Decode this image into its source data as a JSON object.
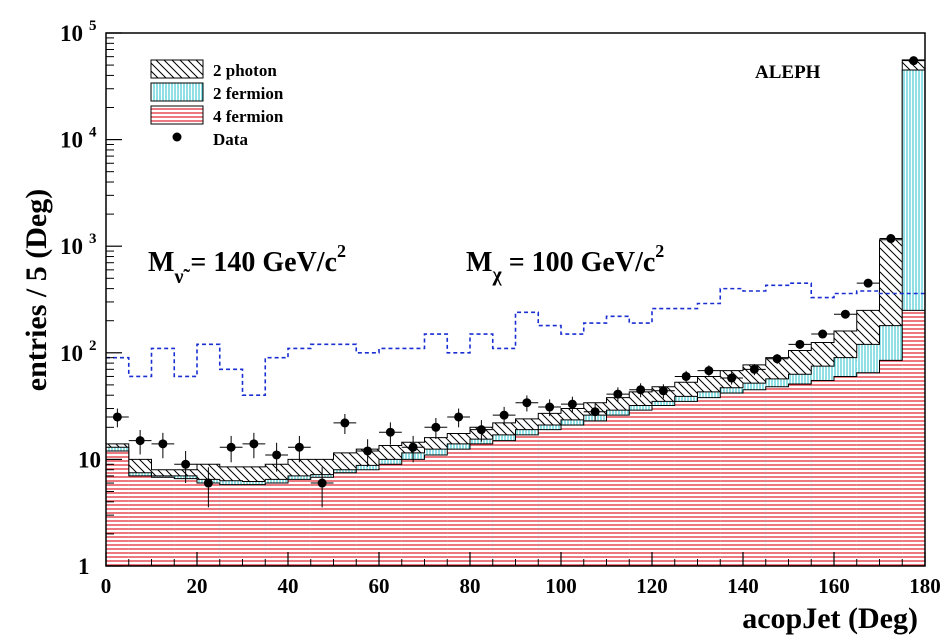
{
  "chart_data": {
    "type": "histogram",
    "xlabel": "acopJet (Deg)",
    "ylabel": "entries / 5 (Deg)",
    "xlim": [
      0,
      180
    ],
    "ylim": [
      1,
      100000
    ],
    "log_y": true,
    "grid": false,
    "legend_position": "top-left",
    "experiment_label": "ALEPH",
    "annotations": [
      {
        "text": "M",
        "sub": "ν̃",
        "rest": " = 140 GeV/c",
        "sup": "2"
      },
      {
        "text": "M",
        "sub": "χ",
        "rest": " = 100 GeV/c",
        "sup": "2"
      }
    ],
    "x_ticks": [
      0,
      20,
      40,
      60,
      80,
      100,
      120,
      140,
      160,
      180
    ],
    "y_ticks": [
      {
        "value": 1,
        "base": "1",
        "exp": ""
      },
      {
        "value": 10,
        "base": "10",
        "exp": ""
      },
      {
        "value": 100,
        "base": "10",
        "exp": "2"
      },
      {
        "value": 1000,
        "base": "10",
        "exp": "3"
      },
      {
        "value": 10000,
        "base": "10",
        "exp": "4"
      },
      {
        "value": 100000,
        "base": "10",
        "exp": "5"
      }
    ],
    "bin_edges": [
      0,
      5,
      10,
      15,
      20,
      25,
      30,
      35,
      40,
      45,
      50,
      55,
      60,
      65,
      70,
      75,
      80,
      85,
      90,
      95,
      100,
      105,
      110,
      115,
      120,
      125,
      130,
      135,
      140,
      145,
      150,
      155,
      160,
      165,
      170,
      175,
      180
    ],
    "series": [
      {
        "name": "4 fermion",
        "style": "red-hatch",
        "values": [
          12,
          7,
          6.8,
          6.6,
          6,
          5.8,
          5.8,
          6,
          6.5,
          6.8,
          7.5,
          8,
          9,
          10,
          11,
          12.5,
          14,
          15,
          17,
          19,
          21,
          23,
          26,
          29,
          32,
          35,
          38,
          42,
          45,
          48,
          51,
          55,
          60,
          65,
          85,
          250
        ]
      },
      {
        "name": "2 fermion",
        "style": "cyan-stripe",
        "values": [
          13,
          7.5,
          7,
          7,
          6.5,
          6.3,
          6.2,
          6.5,
          7,
          7.2,
          8,
          8.8,
          10,
          11.5,
          12.5,
          14,
          15.5,
          17,
          19,
          21,
          23.5,
          26,
          29,
          32,
          35,
          39,
          43,
          47,
          52,
          57,
          63,
          75,
          90,
          120,
          180,
          45000
        ]
      },
      {
        "name": "2 photon",
        "style": "black-diagonal",
        "values": [
          14,
          10,
          8,
          8,
          9,
          8.5,
          8.5,
          9,
          10,
          10,
          11.5,
          12.5,
          13.5,
          14.5,
          16,
          17.5,
          20,
          22,
          24,
          27,
          30,
          34,
          38,
          43,
          48,
          53,
          60,
          68,
          77,
          90,
          105,
          125,
          160,
          250,
          1150,
          56000
        ]
      }
    ],
    "signal_curve": {
      "name": "",
      "color": "#1a2fd1",
      "values": [
        90,
        60,
        110,
        60,
        120,
        70,
        40,
        90,
        110,
        120,
        120,
        100,
        110,
        110,
        150,
        100,
        150,
        110,
        240,
        180,
        150,
        190,
        220,
        190,
        260,
        260,
        290,
        400,
        380,
        430,
        450,
        330,
        360,
        380,
        360,
        360
      ]
    },
    "data": {
      "name": "Data",
      "x": [
        2.5,
        7.5,
        12.5,
        17.5,
        22.5,
        27.5,
        32.5,
        37.5,
        42.5,
        47.5,
        52.5,
        57.5,
        62.5,
        67.5,
        72.5,
        77.5,
        82.5,
        87.5,
        92.5,
        97.5,
        102.5,
        107.5,
        112.5,
        117.5,
        122.5,
        127.5,
        132.5,
        137.5,
        142.5,
        147.5,
        152.5,
        157.5,
        162.5,
        167.5,
        172.5,
        177.5
      ],
      "y": [
        25,
        15,
        14,
        9,
        6,
        13,
        14,
        11,
        13,
        6,
        22,
        12,
        18,
        13,
        20,
        25,
        19,
        26,
        34,
        31,
        33,
        28,
        41,
        45,
        44,
        60,
        68,
        58,
        70,
        88,
        120,
        150,
        230,
        450,
        1180,
        55000
      ]
    },
    "legend": [
      {
        "label": "2 photon",
        "style": "black-diagonal"
      },
      {
        "label": "2 fermion",
        "style": "cyan-stripe"
      },
      {
        "label": "4 fermion",
        "style": "red-hatch"
      },
      {
        "label": "Data",
        "style": "marker"
      }
    ],
    "colors": {
      "red_hatch": "#e0202a",
      "cyan_stripe": "#36c8d2",
      "signal": "#1a2fd1",
      "text": "#000000"
    }
  }
}
